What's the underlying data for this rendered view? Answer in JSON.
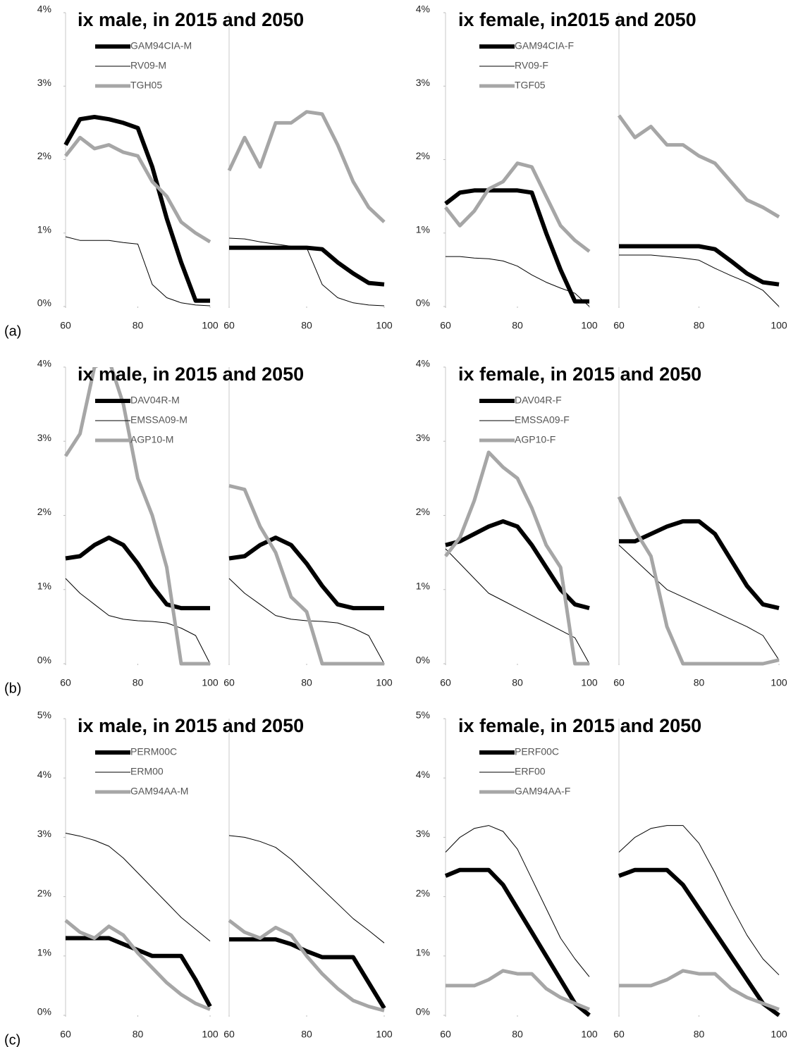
{
  "chart_data": [
    {
      "type": "line",
      "title": "ix male, in 2015 and 2050",
      "panel_label": "(a)",
      "x": [
        60,
        64,
        68,
        72,
        76,
        80,
        84,
        88,
        92,
        96,
        100
      ],
      "xlim": [
        60,
        100
      ],
      "xticks": [
        60,
        80,
        100
      ],
      "ylim": [
        0,
        4
      ],
      "yticks": [
        {
          "value": 0,
          "label": "0%"
        },
        {
          "value": 1,
          "label": "1%"
        },
        {
          "value": 2,
          "label": "2%"
        },
        {
          "value": 3,
          "label": "3%"
        },
        {
          "value": 4,
          "label": "4%"
        }
      ],
      "series": [
        {
          "name": "GAM94CIA-M",
          "color": "#000000",
          "width": 6,
          "panels": [
            [
              2.2,
              2.55,
              2.58,
              2.55,
              2.5,
              2.43,
              1.9,
              1.2,
              0.6,
              0.08,
              0.08
            ],
            [
              0.8,
              0.8,
              0.8,
              0.8,
              0.8,
              0.8,
              0.78,
              0.6,
              0.45,
              0.32,
              0.3
            ]
          ]
        },
        {
          "name": "RV09-M",
          "color": "#000000",
          "width": 1,
          "panels": [
            [
              0.95,
              0.9,
              0.9,
              0.9,
              0.87,
              0.85,
              0.3,
              0.12,
              0.05,
              0.02,
              0.01
            ],
            [
              0.93,
              0.92,
              0.88,
              0.85,
              0.82,
              0.8,
              0.3,
              0.12,
              0.05,
              0.02,
              0.01
            ]
          ]
        },
        {
          "name": "TGH05",
          "color": "#a6a6a6",
          "width": 5,
          "panels": [
            [
              2.05,
              2.3,
              2.15,
              2.2,
              2.1,
              2.05,
              1.7,
              1.5,
              1.15,
              1.0,
              0.88
            ],
            [
              1.85,
              2.3,
              1.9,
              2.5,
              2.5,
              2.65,
              2.62,
              2.2,
              1.7,
              1.35,
              1.15
            ]
          ]
        }
      ]
    },
    {
      "type": "line",
      "title": "ix female, in2015 and 2050",
      "x": [
        60,
        64,
        68,
        72,
        76,
        80,
        84,
        88,
        92,
        96,
        100
      ],
      "xlim": [
        60,
        100
      ],
      "xticks": [
        60,
        80,
        100
      ],
      "ylim": [
        0,
        4
      ],
      "yticks": [
        {
          "value": 0,
          "label": "0%"
        },
        {
          "value": 1,
          "label": "1%"
        },
        {
          "value": 2,
          "label": "2%"
        },
        {
          "value": 3,
          "label": "3%"
        },
        {
          "value": 4,
          "label": "4%"
        }
      ],
      "series": [
        {
          "name": "GAM94CIA-F",
          "color": "#000000",
          "width": 6,
          "panels": [
            [
              1.4,
              1.55,
              1.58,
              1.58,
              1.58,
              1.58,
              1.55,
              1.0,
              0.5,
              0.07,
              0.07
            ],
            [
              0.82,
              0.82,
              0.82,
              0.82,
              0.82,
              0.82,
              0.78,
              0.62,
              0.45,
              0.33,
              0.3
            ]
          ]
        },
        {
          "name": "RV09-F",
          "color": "#000000",
          "width": 1,
          "panels": [
            [
              0.68,
              0.68,
              0.66,
              0.65,
              0.62,
              0.55,
              0.43,
              0.33,
              0.25,
              0.18,
              0.0
            ],
            [
              0.7,
              0.7,
              0.7,
              0.68,
              0.66,
              0.63,
              0.52,
              0.42,
              0.33,
              0.22,
              0.0
            ]
          ]
        },
        {
          "name": "TGF05",
          "color": "#a6a6a6",
          "width": 5,
          "panels": [
            [
              1.35,
              1.1,
              1.3,
              1.6,
              1.7,
              1.95,
              1.9,
              1.5,
              1.1,
              0.9,
              0.75
            ],
            [
              2.6,
              2.3,
              2.45,
              2.2,
              2.2,
              2.05,
              1.95,
              1.7,
              1.45,
              1.35,
              1.22
            ]
          ]
        }
      ]
    },
    {
      "type": "line",
      "title": "ix male, in 2015 and 2050",
      "panel_label": "(b)",
      "x": [
        60,
        64,
        68,
        72,
        76,
        80,
        84,
        88,
        92,
        96,
        100
      ],
      "xlim": [
        60,
        100
      ],
      "xticks": [
        60,
        80,
        100
      ],
      "ylim": [
        0,
        4
      ],
      "yticks": [
        {
          "value": 0,
          "label": "0%"
        },
        {
          "value": 1,
          "label": "1%"
        },
        {
          "value": 2,
          "label": "2%"
        },
        {
          "value": 3,
          "label": "3%"
        },
        {
          "value": 4,
          "label": "4%"
        }
      ],
      "series": [
        {
          "name": "DAV04R-M",
          "color": "#000000",
          "width": 6,
          "panels": [
            [
              1.42,
              1.45,
              1.6,
              1.7,
              1.6,
              1.35,
              1.05,
              0.8,
              0.75,
              0.75,
              0.75
            ],
            [
              1.42,
              1.45,
              1.6,
              1.7,
              1.6,
              1.35,
              1.05,
              0.8,
              0.75,
              0.75,
              0.75
            ]
          ]
        },
        {
          "name": "EMSSA09-M",
          "color": "#000000",
          "width": 1,
          "panels": [
            [
              1.15,
              0.95,
              0.8,
              0.65,
              0.6,
              0.58,
              0.57,
              0.55,
              0.48,
              0.38,
              0.0
            ],
            [
              1.15,
              0.95,
              0.8,
              0.65,
              0.6,
              0.58,
              0.57,
              0.55,
              0.48,
              0.38,
              0.0
            ]
          ]
        },
        {
          "name": "AGP10-M",
          "color": "#a6a6a6",
          "width": 5,
          "panels": [
            [
              2.8,
              3.1,
              4.0,
              4.1,
              3.5,
              2.5,
              2.0,
              1.3,
              0.0,
              0.0,
              0.0
            ],
            [
              2.4,
              2.35,
              1.85,
              1.5,
              0.9,
              0.7,
              0.0,
              0.0,
              0.0,
              0.0,
              0.0
            ]
          ]
        }
      ]
    },
    {
      "type": "line",
      "title": "ix female, in 2015 and 2050",
      "x": [
        60,
        64,
        68,
        72,
        76,
        80,
        84,
        88,
        92,
        96,
        100
      ],
      "xlim": [
        60,
        100
      ],
      "xticks": [
        60,
        80,
        100
      ],
      "ylim": [
        0,
        4
      ],
      "yticks": [
        {
          "value": 0,
          "label": "0%"
        },
        {
          "value": 1,
          "label": "1%"
        },
        {
          "value": 2,
          "label": "2%"
        },
        {
          "value": 3,
          "label": "3%"
        },
        {
          "value": 4,
          "label": "4%"
        }
      ],
      "series": [
        {
          "name": "DAV04R-F",
          "color": "#000000",
          "width": 6,
          "panels": [
            [
              1.6,
              1.65,
              1.75,
              1.85,
              1.92,
              1.85,
              1.6,
              1.3,
              1.0,
              0.8,
              0.75
            ],
            [
              1.65,
              1.65,
              1.75,
              1.85,
              1.92,
              1.92,
              1.75,
              1.4,
              1.05,
              0.8,
              0.75
            ]
          ]
        },
        {
          "name": "EMSSA09-F",
          "color": "#000000",
          "width": 1,
          "panels": [
            [
              1.55,
              1.35,
              1.15,
              0.95,
              0.85,
              0.75,
              0.65,
              0.55,
              0.45,
              0.35,
              0.0
            ],
            [
              1.6,
              1.4,
              1.2,
              1.0,
              0.9,
              0.8,
              0.7,
              0.6,
              0.5,
              0.38,
              0.05
            ]
          ]
        },
        {
          "name": "AGP10-F",
          "color": "#a6a6a6",
          "width": 5,
          "panels": [
            [
              1.45,
              1.7,
              2.2,
              2.85,
              2.65,
              2.5,
              2.1,
              1.6,
              1.3,
              0.0,
              0.0
            ],
            [
              2.25,
              1.8,
              1.45,
              0.5,
              0.0,
              0.0,
              0.0,
              0.0,
              0.0,
              0.0,
              0.05
            ]
          ]
        }
      ]
    },
    {
      "type": "line",
      "title": "ix male, in 2015 and 2050",
      "panel_label": "(c)",
      "x": [
        60,
        64,
        68,
        72,
        76,
        80,
        84,
        88,
        92,
        96,
        100
      ],
      "xlim": [
        60,
        100
      ],
      "xticks": [
        60,
        80,
        100
      ],
      "ylim": [
        0,
        5
      ],
      "yticks": [
        {
          "value": 0,
          "label": "0%"
        },
        {
          "value": 1,
          "label": "1%"
        },
        {
          "value": 2,
          "label": "2%"
        },
        {
          "value": 3,
          "label": "3%"
        },
        {
          "value": 4,
          "label": "4%"
        },
        {
          "value": 5,
          "label": "5%"
        }
      ],
      "series": [
        {
          "name": "PERM00C",
          "color": "#000000",
          "width": 6,
          "panels": [
            [
              1.3,
              1.3,
              1.3,
              1.3,
              1.2,
              1.1,
              1.0,
              1.0,
              1.0,
              0.6,
              0.15
            ],
            [
              1.28,
              1.28,
              1.28,
              1.28,
              1.2,
              1.08,
              0.98,
              0.98,
              0.98,
              0.55,
              0.12
            ]
          ]
        },
        {
          "name": "ERM00",
          "color": "#000000",
          "width": 1,
          "panels": [
            [
              3.07,
              3.02,
              2.95,
              2.85,
              2.65,
              2.4,
              2.15,
              1.9,
              1.65,
              1.45,
              1.25
            ],
            [
              3.03,
              3.0,
              2.93,
              2.83,
              2.63,
              2.38,
              2.13,
              1.88,
              1.63,
              1.43,
              1.22
            ]
          ]
        },
        {
          "name": "GAM94AA-M",
          "color": "#a6a6a6",
          "width": 5,
          "panels": [
            [
              1.6,
              1.4,
              1.3,
              1.5,
              1.35,
              1.05,
              0.8,
              0.55,
              0.35,
              0.2,
              0.1
            ],
            [
              1.6,
              1.4,
              1.3,
              1.48,
              1.35,
              1.0,
              0.7,
              0.45,
              0.25,
              0.15,
              0.08
            ]
          ]
        }
      ]
    },
    {
      "type": "line",
      "title": "ix female, in 2015 and 2050",
      "x": [
        60,
        64,
        68,
        72,
        76,
        80,
        84,
        88,
        92,
        96,
        100
      ],
      "xlim": [
        60,
        100
      ],
      "xticks": [
        60,
        80,
        100
      ],
      "ylim": [
        0,
        5
      ],
      "yticks": [
        {
          "value": 0,
          "label": "0%"
        },
        {
          "value": 1,
          "label": "1%"
        },
        {
          "value": 2,
          "label": "2%"
        },
        {
          "value": 3,
          "label": "3%"
        },
        {
          "value": 4,
          "label": "4%"
        },
        {
          "value": 5,
          "label": "5%"
        }
      ],
      "series": [
        {
          "name": "PERF00C",
          "color": "#000000",
          "width": 6,
          "panels": [
            [
              2.35,
              2.45,
              2.45,
              2.45,
              2.2,
              1.8,
              1.4,
              1.0,
              0.6,
              0.2,
              0.0
            ],
            [
              2.35,
              2.45,
              2.45,
              2.45,
              2.2,
              1.8,
              1.4,
              1.0,
              0.6,
              0.2,
              0.0
            ]
          ]
        },
        {
          "name": "ERF00",
          "color": "#000000",
          "width": 1,
          "panels": [
            [
              2.75,
              3.0,
              3.15,
              3.2,
              3.1,
              2.8,
              2.3,
              1.8,
              1.3,
              0.95,
              0.65
            ],
            [
              2.75,
              3.0,
              3.15,
              3.2,
              3.2,
              2.9,
              2.4,
              1.85,
              1.35,
              0.95,
              0.68
            ]
          ]
        },
        {
          "name": "GAM94AA-F",
          "color": "#a6a6a6",
          "width": 5,
          "panels": [
            [
              0.5,
              0.5,
              0.5,
              0.6,
              0.75,
              0.7,
              0.7,
              0.45,
              0.3,
              0.2,
              0.1
            ],
            [
              0.5,
              0.5,
              0.5,
              0.6,
              0.75,
              0.7,
              0.7,
              0.45,
              0.3,
              0.2,
              0.1
            ]
          ]
        }
      ]
    }
  ]
}
